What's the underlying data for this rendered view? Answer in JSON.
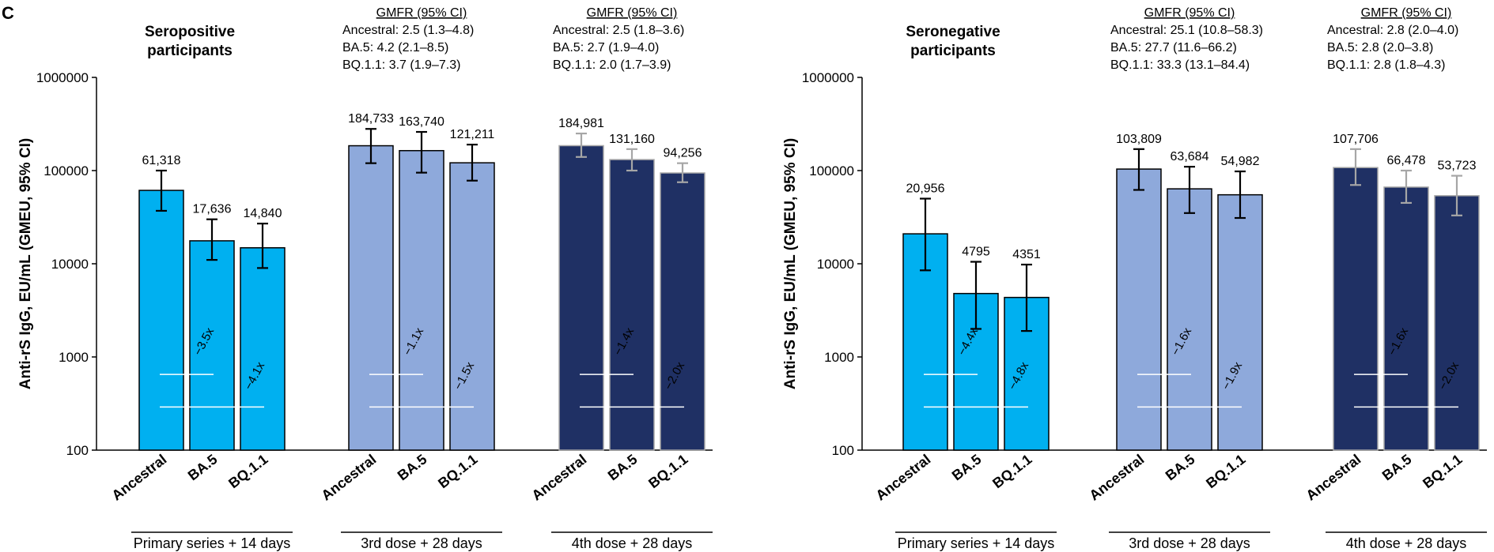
{
  "panel_label": "C",
  "colors": {
    "primary": "#00B0F0",
    "dose3": "#8EA9DB",
    "dose4": "#1F3064",
    "errorbar": "#000000",
    "errorbar_dose4": "#A6A6A6",
    "fold_line": "#ffffff"
  },
  "chart_data": [
    {
      "type": "bar",
      "title": "Seropositive participants",
      "ylabel": "Anti-rS IgG, EU/mL (GMEU, 95% CI)",
      "yscale": "log",
      "ylim": [
        100,
        1000000
      ],
      "yticks": [
        "100",
        "1000",
        "10000",
        "100000",
        "1000000"
      ],
      "groups": [
        {
          "label": "Primary series + 14 days",
          "categories": [
            "Ancestral",
            "BA.5",
            "BQ.1.1"
          ],
          "values": [
            61318,
            17636,
            14840
          ],
          "ci_low": [
            37000,
            11000,
            9000
          ],
          "ci_high": [
            100000,
            30000,
            27000
          ],
          "value_labels": [
            "61,318",
            "17,636",
            "14,840"
          ],
          "fold_labels": [
            "−3.5x",
            "−4.1x"
          ],
          "gmfr_header": "",
          "gmfr_lines": []
        },
        {
          "label": "3rd dose + 28 days",
          "categories": [
            "Ancestral",
            "BA.5",
            "BQ.1.1"
          ],
          "values": [
            184733,
            163740,
            121211
          ],
          "ci_low": [
            120000,
            95000,
            78000
          ],
          "ci_high": [
            280000,
            260000,
            190000
          ],
          "value_labels": [
            "184,733",
            "163,740",
            "121,211"
          ],
          "fold_labels": [
            "−1.1x",
            "−1.5x"
          ],
          "gmfr_header": "GMFR (95% CI)",
          "gmfr_lines": [
            "Ancestral: 2.5 (1.3–4.8)",
            "BA.5: 4.2 (2.1–8.5)",
            "BQ.1.1: 3.7 (1.9–7.3)"
          ]
        },
        {
          "label": "4th dose + 28 days",
          "categories": [
            "Ancestral",
            "BA.5",
            "BQ.1.1"
          ],
          "values": [
            184981,
            131160,
            94256
          ],
          "ci_low": [
            140000,
            100000,
            75000
          ],
          "ci_high": [
            250000,
            170000,
            120000
          ],
          "value_labels": [
            "184,981",
            "131,160",
            "94,256"
          ],
          "fold_labels": [
            "−1.4x",
            "−2.0x"
          ],
          "gmfr_header": "GMFR (95% CI)",
          "gmfr_lines": [
            "Ancestral: 2.5 (1.8–3.6)",
            "BA.5: 2.7 (1.9–4.0)",
            "BQ.1.1: 2.0 (1.7–3.9)"
          ]
        }
      ]
    },
    {
      "type": "bar",
      "title": "Seronegative participants",
      "ylabel": "Anti-rS IgG, EU/mL (GMEU, 95% CI)",
      "yscale": "log",
      "ylim": [
        100,
        1000000
      ],
      "yticks": [
        "100",
        "1000",
        "10000",
        "100000",
        "1000000"
      ],
      "groups": [
        {
          "label": "Primary series + 14 days",
          "categories": [
            "Ancestral",
            "BA.5",
            "BQ.1.1"
          ],
          "values": [
            20956,
            4795,
            4351
          ],
          "ci_low": [
            8500,
            2000,
            1900
          ],
          "ci_high": [
            50000,
            10500,
            9800
          ],
          "value_labels": [
            "20,956",
            "4795",
            "4351"
          ],
          "fold_labels": [
            "−4.4x",
            "−4.8x"
          ],
          "gmfr_header": "",
          "gmfr_lines": []
        },
        {
          "label": "3rd dose + 28 days",
          "categories": [
            "Ancestral",
            "BA.5",
            "BQ.1.1"
          ],
          "values": [
            103809,
            63684,
            54982
          ],
          "ci_low": [
            62000,
            35000,
            31000
          ],
          "ci_high": [
            170000,
            110000,
            98000
          ],
          "value_labels": [
            "103,809",
            "63,684",
            "54,982"
          ],
          "fold_labels": [
            "−1.6x",
            "−1.9x"
          ],
          "gmfr_header": "GMFR (95% CI)",
          "gmfr_lines": [
            "Ancestral: 25.1 (10.8–58.3)",
            "BA.5: 27.7 (11.6–66.2)",
            "BQ.1.1: 33.3 (13.1–84.4)"
          ]
        },
        {
          "label": "4th dose + 28 days",
          "categories": [
            "Ancestral",
            "BA.5",
            "BQ.1.1"
          ],
          "values": [
            107706,
            66478,
            53723
          ],
          "ci_low": [
            70000,
            45000,
            33000
          ],
          "ci_high": [
            170000,
            100000,
            88000
          ],
          "value_labels": [
            "107,706",
            "66,478",
            "53,723"
          ],
          "fold_labels": [
            "−1.6x",
            "−2.0x"
          ],
          "gmfr_header": "GMFR (95% CI)",
          "gmfr_lines": [
            "Ancestral: 2.8 (2.0–4.0)",
            "BA.5: 2.8 (2.0–3.8)",
            "BQ.1.1: 2.8 (1.8–4.3)"
          ]
        }
      ]
    }
  ]
}
